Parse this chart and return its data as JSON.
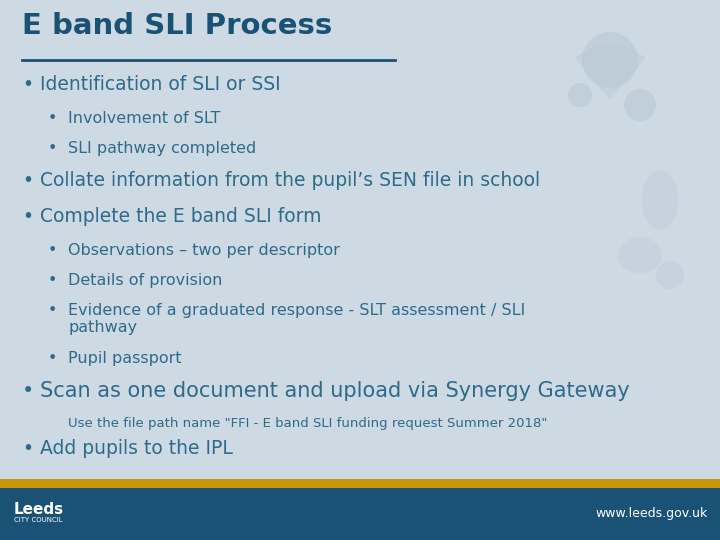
{
  "title": "E band SLI Process",
  "title_color": "#1a5276",
  "title_underline_color": "#1a5276",
  "bg_color": "#cdd9e3",
  "footer_bar_color": "#1a5276",
  "footer_accent_color": "#c8960a",
  "footer_text": "www.leeds.gov.uk",
  "footer_text_color": "#ffffff",
  "text_color": "#2e6b8a",
  "content": [
    {
      "level": 1,
      "text": "Identification of SLI or SSI",
      "large": false
    },
    {
      "level": 2,
      "text": "Involvement of SLT"
    },
    {
      "level": 2,
      "text": "SLI pathway completed"
    },
    {
      "level": 1,
      "text": "Collate information from the pupil’s SEN file in school",
      "large": false
    },
    {
      "level": 1,
      "text": "Complete the E band SLI form",
      "large": false
    },
    {
      "level": 2,
      "text": "Observations – two per descriptor"
    },
    {
      "level": 2,
      "text": "Details of provision"
    },
    {
      "level": 2,
      "text": "Evidence of a graduated response - SLT assessment / SLI\npathway"
    },
    {
      "level": 2,
      "text": "Pupil passport"
    },
    {
      "level": 1,
      "text": "Scan as one document and upload via Synergy Gateway",
      "large": true
    },
    {
      "level": 0,
      "text": "Use the file path name \"FFI - E band SLI funding request Summer 2018\""
    },
    {
      "level": 1,
      "text": "Add pupils to the IPL",
      "large": false
    }
  ]
}
